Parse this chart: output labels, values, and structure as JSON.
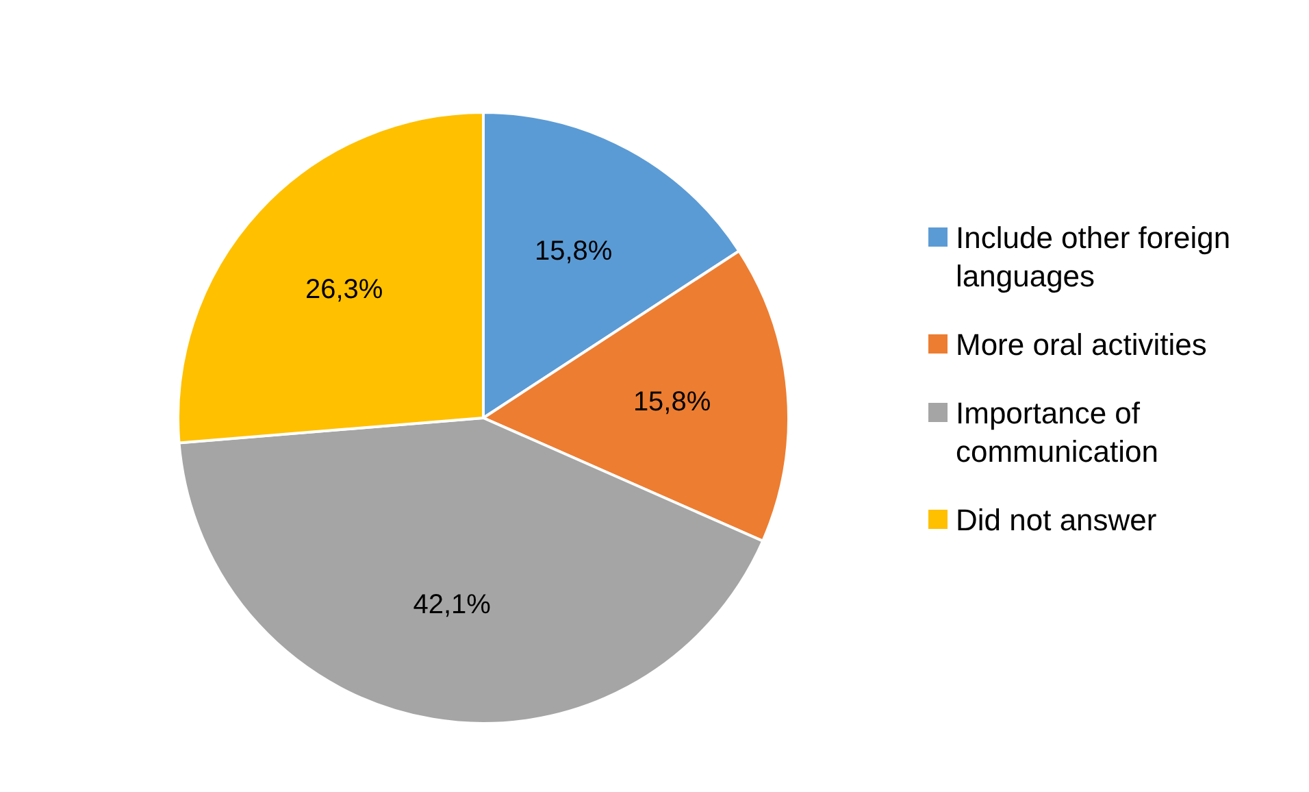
{
  "chart_data": {
    "type": "pie",
    "categories": [
      "Include other foreign languages",
      "More oral activities",
      "Importance of communication",
      "Did not answer"
    ],
    "values": [
      15.8,
      15.8,
      42.1,
      26.3
    ],
    "colors": [
      "#5b9bd5",
      "#ed7d31",
      "#a5a5a5",
      "#ffc000"
    ],
    "value_labels": [
      "15,8%",
      "15,8%",
      "42,1%",
      "26,3%"
    ],
    "legend": "right"
  }
}
